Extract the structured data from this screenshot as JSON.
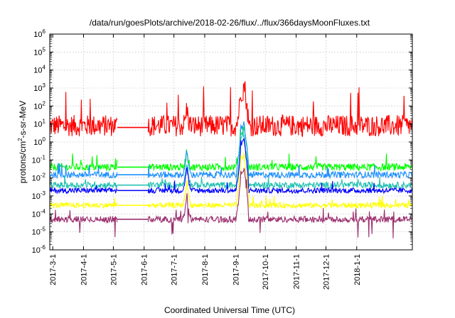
{
  "chart_data": {
    "type": "line",
    "title": "/data/run/goesPlots/archive/2018-02-26/flux/../flux/366daysMoonFluxes.txt",
    "xlabel": "Coordinated Universal Time (UTC)",
    "ylabel_parts": [
      "protons/cm",
      "2",
      "-s-sr-MeV"
    ],
    "y_scale": "log",
    "ylim": [
      1e-06,
      1000000.0
    ],
    "y_ticks": [
      {
        "base": "10",
        "exp": "-6",
        "value": 1e-06
      },
      {
        "base": "10",
        "exp": "-5",
        "value": 1e-05
      },
      {
        "base": "10",
        "exp": "-4",
        "value": 0.0001
      },
      {
        "base": "10",
        "exp": "-3",
        "value": 0.001
      },
      {
        "base": "10",
        "exp": "-2",
        "value": 0.01
      },
      {
        "base": "10",
        "exp": "-1",
        "value": 0.1
      },
      {
        "base": "10",
        "exp": "0",
        "value": 1
      },
      {
        "base": "10",
        "exp": "1",
        "value": 10
      },
      {
        "base": "10",
        "exp": "2",
        "value": 100
      },
      {
        "base": "10",
        "exp": "3",
        "value": 1000
      },
      {
        "base": "10",
        "exp": "4",
        "value": 10000
      },
      {
        "base": "10",
        "exp": "5",
        "value": 100000
      },
      {
        "base": "10",
        "exp": "6",
        "value": 1000000
      }
    ],
    "xlim": [
      "2017-02-26",
      "2018-02-26"
    ],
    "x_ticks": [
      "2017-3-1",
      "2017-4-1",
      "2017-5-1",
      "2017-6-1",
      "2017-7-1",
      "2017-8-1",
      "2017-9-1",
      "2017-10-1",
      "2017-11-1",
      "2017-12-1",
      "2018-1-1"
    ],
    "grid": true,
    "legend": "none",
    "data_gap": [
      "2017-05-05",
      "2017-06-05"
    ],
    "spike_events": [
      {
        "date": "2017-07-14",
        "factor": 10
      },
      {
        "date": "2017-09-06",
        "factor": 40
      },
      {
        "date": "2017-09-10",
        "factor": 200
      }
    ],
    "series": [
      {
        "color": "#ff0000",
        "baseline": 8,
        "noise_decades": 1.2
      },
      {
        "color": "#00ff00",
        "baseline": 0.04,
        "noise_decades": 0.4
      },
      {
        "color": "#1e90ff",
        "baseline": 0.015,
        "noise_decades": 0.35
      },
      {
        "color": "#20c0b0",
        "baseline": 0.004,
        "noise_decades": 0.35
      },
      {
        "color": "#0000ff",
        "baseline": 0.002,
        "noise_decades": 0.3
      },
      {
        "color": "#ffff00",
        "baseline": 0.0003,
        "noise_decades": 0.3
      },
      {
        "color": "#9b2f6e",
        "baseline": 5e-05,
        "noise_decades": 0.35
      }
    ]
  }
}
